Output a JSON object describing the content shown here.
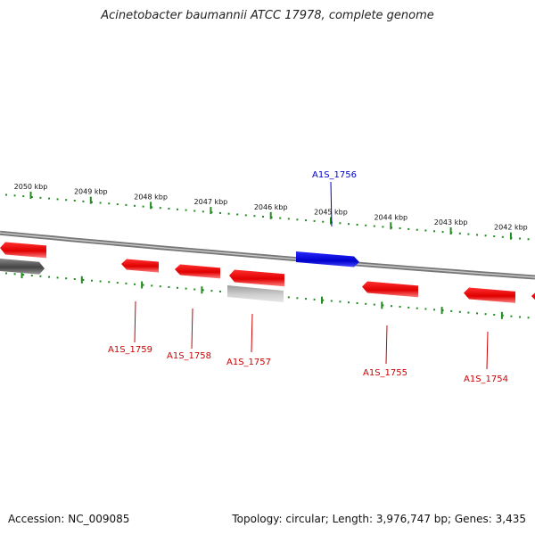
{
  "title": "Acinetobacter baumannii ATCC 17978, complete genome",
  "footer": {
    "accession": "Accession: NC_009085",
    "summary": "Topology: circular; Length: 3,976,747 bp; Genes: 3,435"
  },
  "colors": {
    "cds": "#ff0000",
    "highlight": "#0000dd",
    "pseudo_gray": "#b4b4b4",
    "dark_gray": "#555555",
    "backbone": "#888888",
    "ticks": "#228B22",
    "gene_label": "#cc0000",
    "highlight_label": "#0000cc"
  },
  "map": {
    "ticks": [
      {
        "label": "2050 kbp",
        "pos_kbp": 2050
      },
      {
        "label": "2049 kbp",
        "pos_kbp": 2049
      },
      {
        "label": "2048 kbp",
        "pos_kbp": 2048
      },
      {
        "label": "2047 kbp",
        "pos_kbp": 2047
      },
      {
        "label": "2046 kbp",
        "pos_kbp": 2046
      },
      {
        "label": "2045 kbp",
        "pos_kbp": 2045
      },
      {
        "label": "2044 kbp",
        "pos_kbp": 2044
      },
      {
        "label": "2043 kbp",
        "pos_kbp": 2043
      },
      {
        "label": "2042 kbp",
        "pos_kbp": 2042
      }
    ],
    "genes": [
      {
        "name": "A1S_1756",
        "strand": "forward",
        "type": "highlight",
        "labeled": true
      },
      {
        "name": "A1S_1759",
        "strand": "reverse",
        "type": "cds",
        "labeled": true
      },
      {
        "name": "A1S_1758",
        "strand": "reverse",
        "type": "cds",
        "labeled": true
      },
      {
        "name": "A1S_1757",
        "strand": "reverse",
        "type": "cds",
        "labeled": true
      },
      {
        "name": "A1S_1755",
        "strand": "reverse",
        "type": "cds",
        "labeled": true
      },
      {
        "name": "A1S_1754",
        "strand": "reverse",
        "type": "cds",
        "labeled": true
      }
    ]
  }
}
